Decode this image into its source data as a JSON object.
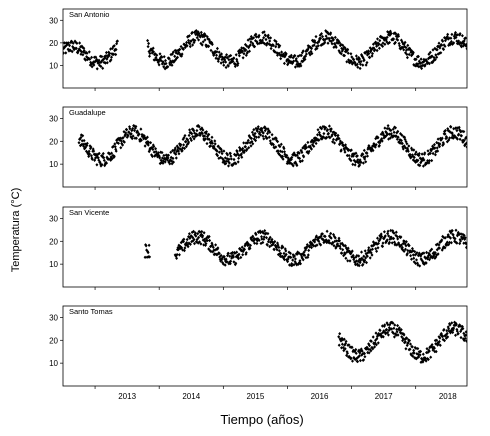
{
  "chart_data": {
    "type": "scatter",
    "ylabel": "Temperatura (°C)",
    "xlabel": "Tiempo (años)",
    "x_tick_labels": [
      "2013",
      "2014",
      "2015",
      "2016",
      "2017",
      "2018"
    ],
    "xlim": [
      2012.5,
      2018.8
    ],
    "y_ticks": [
      10,
      20,
      30
    ],
    "ylim": [
      0,
      35
    ],
    "grid": false,
    "marker": "diamond",
    "color": "#000000",
    "panels": [
      {
        "title": "San Antonio",
        "segments": [
          {
            "x_start": 2012.5,
            "x_end": 2013.35,
            "base": 15.5,
            "amplitude": 5.5,
            "noise": 3,
            "trend": 7
          },
          {
            "x_start": 2013.82,
            "x_end": 2018.8,
            "base": 17,
            "amplitude": 5.5,
            "noise": 3,
            "trend": 0
          }
        ]
      },
      {
        "title": "Guadalupe",
        "segments": [
          {
            "x_start": 2012.75,
            "x_end": 2018.8,
            "base": 18,
            "amplitude": 6,
            "noise": 3,
            "trend": 0
          }
        ]
      },
      {
        "title": "San Vicente",
        "segments": [
          {
            "x_start": 2013.78,
            "x_end": 2013.85,
            "base": 16,
            "amplitude": 0,
            "noise": 3,
            "trend": 0
          },
          {
            "x_start": 2014.25,
            "x_end": 2018.8,
            "base": 17,
            "amplitude": 5,
            "noise": 3,
            "trend": 0
          }
        ]
      },
      {
        "title": "Santo Tomas",
        "segments": [
          {
            "x_start": 2016.8,
            "x_end": 2018.8,
            "base": 19,
            "amplitude": 6,
            "noise": 3,
            "trend": 0
          }
        ]
      }
    ]
  }
}
